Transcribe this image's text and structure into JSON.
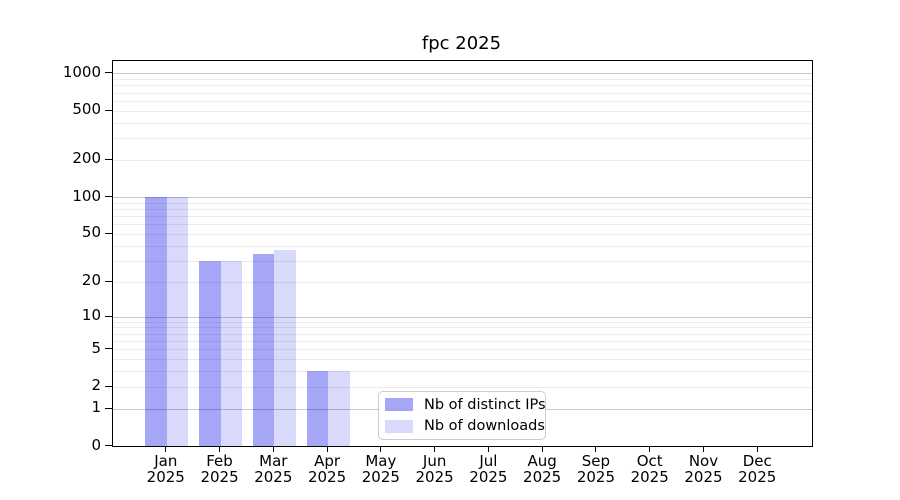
{
  "chart_data": {
    "type": "bar",
    "title": "fpc 2025",
    "categories": [
      "Jan 2025",
      "Feb 2025",
      "Mar 2025",
      "Apr 2025",
      "May 2025",
      "Jun 2025",
      "Jul 2025",
      "Aug 2025",
      "Sep 2025",
      "Oct 2025",
      "Nov 2025",
      "Dec 2025"
    ],
    "series": [
      {
        "name": "Nb of distinct IPs",
        "color": "rgba(0,0,228,0.35)",
        "color_solid": "#a6a6f6",
        "values": [
          100,
          30,
          34,
          3,
          0,
          0,
          0,
          0,
          0,
          0,
          0,
          0
        ]
      },
      {
        "name": "Nb of downloads",
        "color": "rgba(0,0,228,0.15)",
        "color_solid": "#d9d9fb",
        "values": [
          100,
          30,
          37,
          3,
          0,
          0,
          0,
          0,
          0,
          0,
          0,
          0
        ]
      }
    ],
    "xlabel": "",
    "ylabel": "",
    "yscale": "log1p",
    "y_ticks": [
      0,
      1,
      2,
      5,
      10,
      20,
      50,
      100,
      200,
      500,
      1000
    ],
    "ylim": [
      0,
      1258
    ],
    "grid": {
      "visible": true,
      "major_color": "#c8c8c8",
      "minor_color": "#ececec"
    },
    "legend_position": "lower center-left inside plot",
    "bar_group": "paired, bars touch at month tick"
  }
}
